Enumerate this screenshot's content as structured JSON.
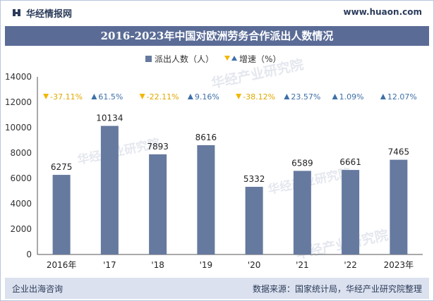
{
  "header": {
    "brand": "华经情报网",
    "url": "www.huaon.com"
  },
  "title": "2016-2023年中国对欧洲劳务合作派出人数情况",
  "footer": {
    "left": "企业出海咨询",
    "right": "数据来源：国家统计局，华经产业研究院整理"
  },
  "watermark": {
    "text": "华经产业研究院",
    "url": "www.huaon.com"
  },
  "colors": {
    "bar": "#66799f",
    "title_bg": "#5a6c96",
    "footer_bg": "#dbe1ee",
    "growth_down": "#f2b705",
    "growth_up": "#3d6fa8",
    "down_text": "#e0a800"
  },
  "chart_data": {
    "type": "bar",
    "categories": [
      "2016年",
      "'17",
      "'18",
      "'19",
      "'20",
      "'21",
      "'22",
      "2023年"
    ],
    "series": [
      {
        "name": "派出人数（人）",
        "values": [
          6275,
          10134,
          7893,
          8616,
          5332,
          6589,
          6661,
          7465
        ]
      },
      {
        "name": "增速（%）",
        "values": [
          -37.11,
          61.5,
          -22.11,
          9.16,
          -38.12,
          23.57,
          1.09,
          12.07
        ],
        "labels": [
          "-37.11%",
          "61.5%",
          "-22.11%",
          "9.16%",
          "-38.12%",
          "23.57%",
          "1.09%",
          "12.07%"
        ]
      }
    ],
    "legend": [
      "派出人数（人）",
      "增速（%）"
    ],
    "ylim": [
      0,
      14000
    ],
    "yticks": [
      0,
      2000,
      4000,
      6000,
      8000,
      10000,
      12000,
      14000
    ],
    "grid": false,
    "legend_position": "top-center"
  }
}
